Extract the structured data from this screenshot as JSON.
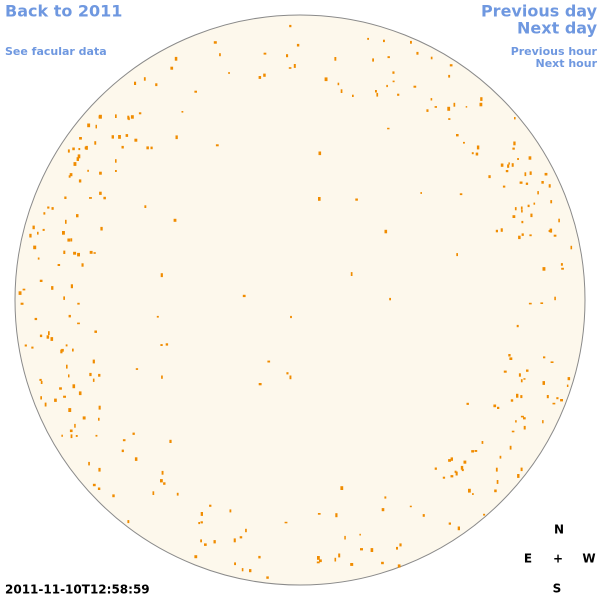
{
  "navigation": {
    "back": "Back to 2011",
    "facular_data": "See facular data",
    "previous_day": "Previous day",
    "next_day": "Next day",
    "previous_hour": "Previous hour",
    "next_hour": "Next hour"
  },
  "compass": {
    "north": "N",
    "east": "E",
    "center": "+",
    "west": "W",
    "south": "S"
  },
  "timestamp": "2011-11-10T12:58:59"
}
